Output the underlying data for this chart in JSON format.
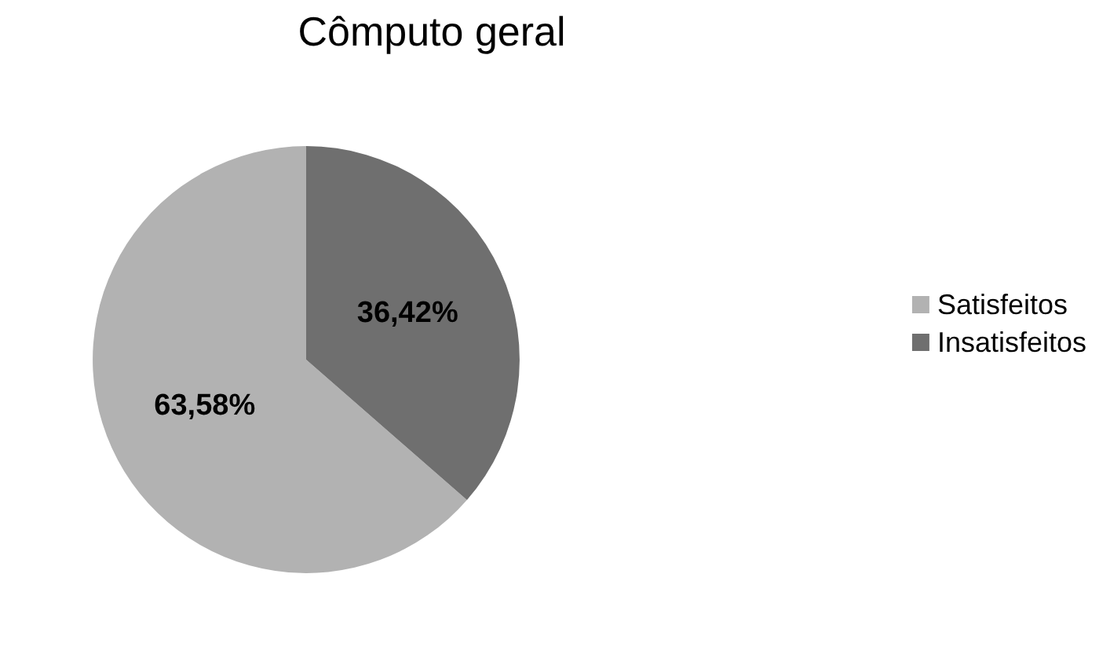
{
  "chart_data": {
    "type": "pie",
    "title": "Cômputo geral",
    "categories": [
      "Satisfeitos",
      "Insatisfeitos"
    ],
    "values": [
      63.58,
      36.42
    ],
    "value_labels": [
      "63,58%",
      "36,42%"
    ],
    "colors": [
      "#b2b2b2",
      "#6f6f6f"
    ],
    "legend": "right"
  }
}
